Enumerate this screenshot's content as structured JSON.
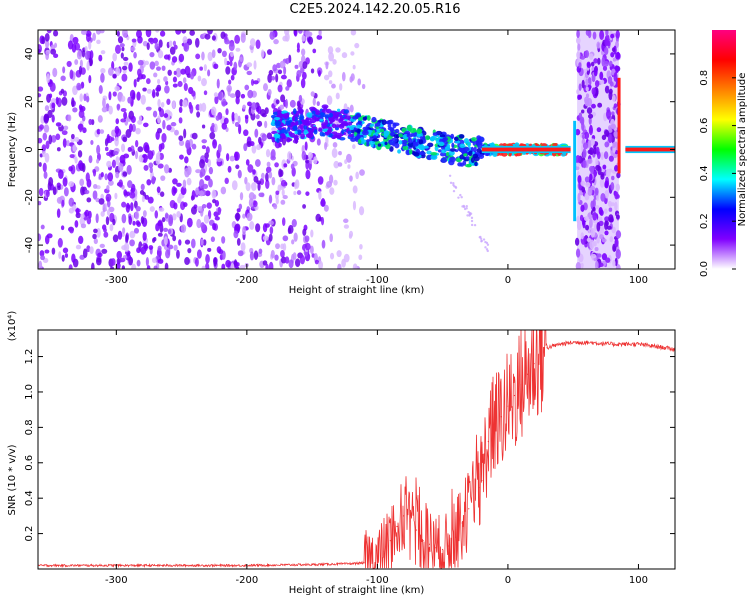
{
  "title": "C2E5.2024.142.20.05.R16",
  "chart_data": [
    {
      "type": "heatmap",
      "name": "spectrogram",
      "xlabel": "Height of straight line (km)",
      "ylabel": "Frequency (Hz)",
      "xlim": [
        -360,
        128
      ],
      "ylim": [
        -50,
        50
      ],
      "xticks": [
        -300,
        -200,
        -100,
        0,
        100
      ],
      "yticks": [
        -40,
        -20,
        0,
        20,
        40
      ],
      "xtick_labels": [
        "-300",
        "-200",
        "-100",
        "0",
        "100"
      ],
      "ytick_labels": [
        "-40",
        "-20",
        "0",
        "20",
        "40"
      ],
      "colorbar": {
        "label": "Normalized spectral amplitude",
        "range": [
          0,
          1
        ],
        "ticks": [
          0.0,
          0.2,
          0.4,
          0.6,
          0.8
        ],
        "tick_labels": [
          "0.0",
          "0.2",
          "0.4",
          "0.6",
          "0.8"
        ],
        "colors": [
          "#ffffff",
          "#8000ff",
          "#0000ff",
          "#00ffff",
          "#00ff00",
          "#ffff00",
          "#ff8000",
          "#ff0000",
          "#ff0080"
        ]
      },
      "features": [
        {
          "label": "noise",
          "x_range": [
            -360,
            -110
          ],
          "freq_range": [
            -50,
            50
          ],
          "amplitude": 0.08
        },
        {
          "label": "signal",
          "x": [
            -180,
            -140,
            -100,
            -60,
            -30,
            -10,
            10,
            45
          ],
          "freq": [
            9,
            12,
            7,
            2,
            -1,
            0,
            0,
            0
          ]
        },
        {
          "label": "noise band",
          "x_range": [
            53,
            85
          ],
          "freq_range": [
            -50,
            50
          ],
          "amplitude": 0.1
        },
        {
          "label": "carrier",
          "x_range": [
            90,
            128
          ],
          "freq": 0,
          "amplitude": 0.9
        }
      ]
    },
    {
      "type": "line",
      "name": "snr",
      "xlabel": "Height of straight line (km)",
      "ylabel": "SNR (10 * v/v)",
      "y_multiplier": "(x10⁴)",
      "xlim": [
        -360,
        128
      ],
      "ylim": [
        0,
        1.35
      ],
      "xticks": [
        -300,
        -200,
        -100,
        0,
        100
      ],
      "yticks": [
        0.2,
        0.4,
        0.6,
        0.8,
        1.0,
        1.2
      ],
      "xtick_labels": [
        "-300",
        "-200",
        "-100",
        "0",
        "100"
      ],
      "ytick_labels": [
        "0.2",
        "0.4",
        "0.6",
        "0.8",
        "1.0",
        "1.2"
      ],
      "color": "#ee3333",
      "x": [
        -360,
        -300,
        -250,
        -200,
        -150,
        -120,
        -110,
        -100,
        -95,
        -90,
        -85,
        -80,
        -75,
        -70,
        -65,
        -60,
        -55,
        -50,
        -45,
        -40,
        -35,
        -30,
        -25,
        -22,
        -20,
        -18,
        -15,
        -12,
        -10,
        -5,
        0,
        5,
        10,
        15,
        20,
        25,
        30,
        40,
        50,
        60,
        80,
        100,
        110,
        120,
        128
      ],
      "y": [
        0.02,
        0.02,
        0.02,
        0.02,
        0.025,
        0.03,
        0.035,
        0.06,
        0.1,
        0.16,
        0.24,
        0.3,
        0.27,
        0.22,
        0.16,
        0.14,
        0.12,
        0.11,
        0.13,
        0.18,
        0.26,
        0.34,
        0.4,
        0.46,
        0.5,
        0.62,
        0.72,
        0.78,
        0.82,
        0.86,
        0.92,
        0.98,
        1.04,
        1.1,
        1.16,
        1.21,
        1.25,
        1.27,
        1.28,
        1.28,
        1.27,
        1.27,
        1.26,
        1.25,
        1.24
      ]
    }
  ]
}
